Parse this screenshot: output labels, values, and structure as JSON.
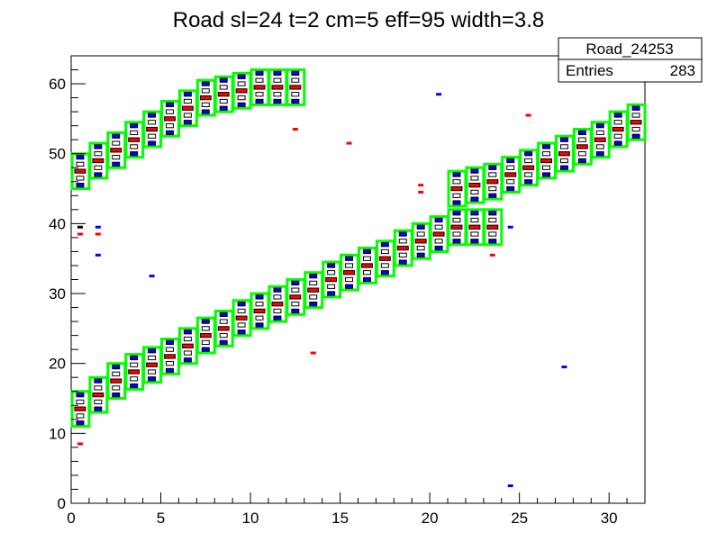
{
  "chart_data": {
    "type": "heatmap",
    "title": "Road sl=24 t=2 cm=5 eff=95 width=3.8",
    "xlabel": "",
    "ylabel": "",
    "xlim": [
      0,
      32
    ],
    "ylim": [
      0,
      64
    ],
    "x_ticks": [
      0,
      5,
      10,
      15,
      20,
      25,
      30
    ],
    "y_ticks": [
      0,
      10,
      20,
      30,
      40,
      50,
      60
    ],
    "x_tick_labels": [
      "0",
      "5",
      "10",
      "15",
      "20",
      "25",
      "30"
    ],
    "y_tick_labels": [
      "0",
      "10",
      "20",
      "30",
      "40",
      "50",
      "60"
    ],
    "stats_box": {
      "name": "Road_24253",
      "entries_label": "Entries",
      "entries_value": "283"
    },
    "colors": {
      "road_outline": "#00ff00",
      "hit_red": "#ff0000",
      "hit_blue": "#0000ff",
      "axis": "#000000"
    },
    "road_band_centers": [
      {
        "col": 0,
        "y": 13.5
      },
      {
        "col": 1,
        "y": 15.5
      },
      {
        "col": 2,
        "y": 17.5
      },
      {
        "col": 3,
        "y": 18.8
      },
      {
        "col": 4,
        "y": 19.8
      },
      {
        "col": 5,
        "y": 21.0
      },
      {
        "col": 6,
        "y": 22.5
      },
      {
        "col": 7,
        "y": 24.0
      },
      {
        "col": 8,
        "y": 25.0
      },
      {
        "col": 9,
        "y": 26.5
      },
      {
        "col": 10,
        "y": 27.5
      },
      {
        "col": 11,
        "y": 28.5
      },
      {
        "col": 12,
        "y": 29.5
      },
      {
        "col": 13,
        "y": 30.5
      },
      {
        "col": 14,
        "y": 32.0
      },
      {
        "col": 15,
        "y": 33.0
      },
      {
        "col": 16,
        "y": 34.0
      },
      {
        "col": 17,
        "y": 35.0
      },
      {
        "col": 18,
        "y": 36.5
      },
      {
        "col": 19,
        "y": 37.5
      },
      {
        "col": 20,
        "y": 38.5
      },
      {
        "col": 21,
        "y": 39.5
      },
      {
        "col": 22,
        "y": 39.5
      },
      {
        "col": 23,
        "y": 39.5
      },
      {
        "col": 0,
        "y": 47.5
      },
      {
        "col": 1,
        "y": 49.0
      },
      {
        "col": 2,
        "y": 50.5
      },
      {
        "col": 3,
        "y": 52.0
      },
      {
        "col": 4,
        "y": 53.5
      },
      {
        "col": 5,
        "y": 55.0
      },
      {
        "col": 6,
        "y": 56.5
      },
      {
        "col": 7,
        "y": 58.0
      },
      {
        "col": 8,
        "y": 58.5
      },
      {
        "col": 9,
        "y": 59.0
      },
      {
        "col": 10,
        "y": 59.5
      },
      {
        "col": 11,
        "y": 59.5
      },
      {
        "col": 12,
        "y": 59.5
      },
      {
        "col": 21,
        "y": 45.0
      },
      {
        "col": 22,
        "y": 45.5
      },
      {
        "col": 23,
        "y": 46.0
      },
      {
        "col": 24,
        "y": 47.0
      },
      {
        "col": 25,
        "y": 48.0
      },
      {
        "col": 26,
        "y": 49.0
      },
      {
        "col": 27,
        "y": 50.0
      },
      {
        "col": 28,
        "y": 51.0
      },
      {
        "col": 29,
        "y": 52.0
      },
      {
        "col": 30,
        "y": 53.5
      },
      {
        "col": 31,
        "y": 54.5
      }
    ],
    "stray_hits": [
      {
        "x": 0.5,
        "y": 8.5,
        "color": "red"
      },
      {
        "x": 0.5,
        "y": 38.5,
        "color": "red"
      },
      {
        "x": 0.5,
        "y": 39.5,
        "color": "black"
      },
      {
        "x": 1.5,
        "y": 35.5,
        "color": "blue"
      },
      {
        "x": 1.5,
        "y": 38.5,
        "color": "red"
      },
      {
        "x": 1.5,
        "y": 39.5,
        "color": "blue"
      },
      {
        "x": 4.5,
        "y": 32.5,
        "color": "blue"
      },
      {
        "x": 12.5,
        "y": 53.5,
        "color": "red"
      },
      {
        "x": 13.5,
        "y": 21.5,
        "color": "red"
      },
      {
        "x": 15.5,
        "y": 51.5,
        "color": "red"
      },
      {
        "x": 19.5,
        "y": 44.5,
        "color": "red"
      },
      {
        "x": 19.5,
        "y": 45.5,
        "color": "red"
      },
      {
        "x": 20.5,
        "y": 58.5,
        "color": "blue"
      },
      {
        "x": 23.5,
        "y": 35.5,
        "color": "red"
      },
      {
        "x": 24.5,
        "y": 2.5,
        "color": "blue"
      },
      {
        "x": 24.5,
        "y": 39.5,
        "color": "blue"
      },
      {
        "x": 25.5,
        "y": 55.5,
        "color": "red"
      },
      {
        "x": 27.5,
        "y": 19.5,
        "color": "blue"
      }
    ]
  }
}
